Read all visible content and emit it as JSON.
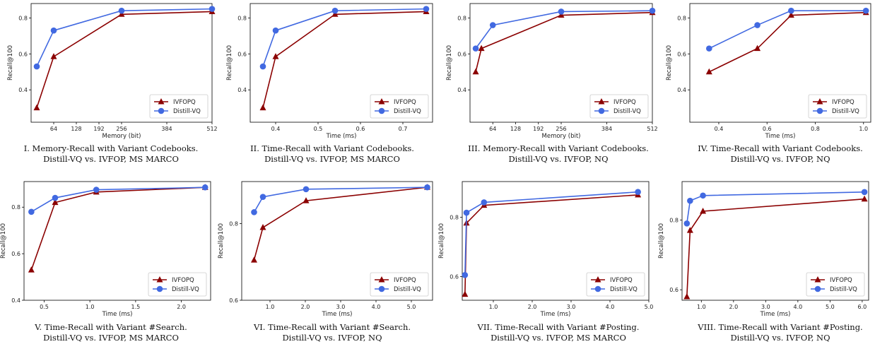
{
  "colors": {
    "IVFOPQ": "#8b0000",
    "Distill-VQ": "#4169e1"
  },
  "chart_data": [
    {
      "type": "line",
      "xlabel": "Memory (bit)",
      "ylabel": "Recall@100",
      "xlim": [
        0,
        512
      ],
      "ylim": [
        0.22,
        0.88
      ],
      "xticks": [
        64,
        128,
        192,
        256,
        384,
        512
      ],
      "xtick_labels": [
        "64",
        "128",
        "192",
        "256",
        "384",
        "512"
      ],
      "yticks": [
        0.4,
        0.6,
        0.8
      ],
      "ytick_labels": [
        "0.4",
        "0.6",
        "0.8"
      ],
      "legend": "lower-right",
      "series": [
        {
          "name": "IVFOPQ",
          "marker": "triangle",
          "x": [
            16,
            64,
            256,
            512
          ],
          "y": [
            0.3,
            0.585,
            0.82,
            0.835
          ]
        },
        {
          "name": "Distill-VQ",
          "marker": "circle",
          "x": [
            16,
            64,
            256,
            512
          ],
          "y": [
            0.53,
            0.73,
            0.84,
            0.85
          ]
        }
      ],
      "caption": [
        "I. Memory-Recall with Variant Codebooks.",
        "Distill-VQ vs. IVFOP, MS MARCO"
      ]
    },
    {
      "type": "line",
      "xlabel": "Time (ms)",
      "ylabel": "Recall@100",
      "xlim": [
        0.34,
        0.77
      ],
      "ylim": [
        0.22,
        0.88
      ],
      "xticks": [
        0.4,
        0.5,
        0.6,
        0.7
      ],
      "xtick_labels": [
        "0.4",
        "0.5",
        "0.6",
        "0.7"
      ],
      "yticks": [
        0.4,
        0.6,
        0.8
      ],
      "ytick_labels": [
        "0.4",
        "0.6",
        "0.8"
      ],
      "legend": "lower-right",
      "series": [
        {
          "name": "IVFOPQ",
          "marker": "triangle",
          "x": [
            0.37,
            0.4,
            0.54,
            0.755
          ],
          "y": [
            0.3,
            0.585,
            0.82,
            0.835
          ]
        },
        {
          "name": "Distill-VQ",
          "marker": "circle",
          "x": [
            0.37,
            0.4,
            0.54,
            0.755
          ],
          "y": [
            0.53,
            0.73,
            0.84,
            0.85
          ]
        }
      ],
      "caption": [
        "II. Time-Recall with Variant Codebooks.",
        "Distill-VQ vs. IVFOP, MS MARCO"
      ]
    },
    {
      "type": "line",
      "xlabel": "Memory (bit)",
      "ylabel": "Recall@100",
      "xlim": [
        0,
        512
      ],
      "ylim": [
        0.22,
        0.88
      ],
      "xticks": [
        64,
        128,
        192,
        256,
        384,
        512
      ],
      "xtick_labels": [
        "64",
        "128",
        "192",
        "256",
        "384",
        "512"
      ],
      "yticks": [
        0.4,
        0.6,
        0.8
      ],
      "ytick_labels": [
        "0.4",
        "0.6",
        "0.8"
      ],
      "legend": "lower-right",
      "series": [
        {
          "name": "IVFOPQ",
          "marker": "triangle",
          "x": [
            16,
            32,
            256,
            512
          ],
          "y": [
            0.5,
            0.63,
            0.815,
            0.83
          ]
        },
        {
          "name": "Distill-VQ",
          "marker": "circle",
          "x": [
            16,
            64,
            256,
            512
          ],
          "y": [
            0.63,
            0.76,
            0.835,
            0.84
          ]
        }
      ],
      "caption": [
        "III. Memory-Recall with Variant Codebooks.",
        "Distill-VQ vs. IVFOP, NQ"
      ]
    },
    {
      "type": "line",
      "xlabel": "Time (ms)",
      "ylabel": "Recall@100",
      "xlim": [
        0.28,
        1.03
      ],
      "ylim": [
        0.22,
        0.88
      ],
      "xticks": [
        0.4,
        0.6,
        0.8,
        1.0
      ],
      "xtick_labels": [
        "0.4",
        "0.6",
        "0.8",
        "1.0"
      ],
      "yticks": [
        0.4,
        0.6,
        0.8
      ],
      "ytick_labels": [
        "0.4",
        "0.6",
        "0.8"
      ],
      "legend": "lower-right",
      "series": [
        {
          "name": "IVFOPQ",
          "marker": "triangle",
          "x": [
            0.36,
            0.56,
            0.7,
            1.01
          ],
          "y": [
            0.5,
            0.63,
            0.815,
            0.83
          ]
        },
        {
          "name": "Distill-VQ",
          "marker": "circle",
          "x": [
            0.36,
            0.56,
            0.7,
            1.01
          ],
          "y": [
            0.63,
            0.76,
            0.84,
            0.84
          ]
        }
      ],
      "caption": [
        "IV. Time-Recall with Variant Codebooks.",
        "Distill-VQ vs. IVFOP, NQ"
      ]
    },
    {
      "type": "line",
      "xlabel": "Time (ms)",
      "ylabel": "Recall@100",
      "xlim": [
        0.28,
        2.32
      ],
      "ylim": [
        0.4,
        0.91
      ],
      "xticks": [
        0.5,
        1.0,
        1.5,
        2.0
      ],
      "xtick_labels": [
        "0.5",
        "1.0",
        "1.5",
        "2.0"
      ],
      "yticks": [
        0.4,
        0.6,
        0.8
      ],
      "ytick_labels": [
        "0.4",
        "0.6",
        "0.8"
      ],
      "legend": "lower-right",
      "series": [
        {
          "name": "IVFOPQ",
          "marker": "triangle",
          "x": [
            0.36,
            0.62,
            1.07,
            2.26
          ],
          "y": [
            0.53,
            0.82,
            0.865,
            0.885
          ]
        },
        {
          "name": "Distill-VQ",
          "marker": "circle",
          "x": [
            0.36,
            0.62,
            1.07,
            2.26
          ],
          "y": [
            0.78,
            0.84,
            0.875,
            0.885
          ]
        }
      ],
      "caption": [
        "V. Time-Recall with Variant #Search.",
        "Distill-VQ vs. IVFOP, MS MARCO"
      ]
    },
    {
      "type": "line",
      "xlabel": "Time (ms)",
      "ylabel": "Recall@100",
      "xlim": [
        0.2,
        5.6
      ],
      "ylim": [
        0.6,
        0.91
      ],
      "xticks": [
        1.0,
        2.0,
        3.0,
        4.0,
        5.0
      ],
      "xtick_labels": [
        "1.0",
        "2.0",
        "3.0",
        "4.0",
        "5.0"
      ],
      "yticks": [
        0.6,
        0.8
      ],
      "ytick_labels": [
        "0.6",
        "0.8"
      ],
      "legend": "lower-right",
      "series": [
        {
          "name": "IVFOPQ",
          "marker": "triangle",
          "x": [
            0.55,
            0.8,
            2.02,
            5.45
          ],
          "y": [
            0.705,
            0.79,
            0.86,
            0.895
          ]
        },
        {
          "name": "Distill-VQ",
          "marker": "circle",
          "x": [
            0.55,
            0.8,
            2.02,
            5.45
          ],
          "y": [
            0.83,
            0.87,
            0.89,
            0.895
          ]
        }
      ],
      "caption": [
        "VI. Time-Recall with Variant #Search.",
        "Distill-VQ vs. IVFOP, NQ"
      ]
    },
    {
      "type": "line",
      "xlabel": "Time (ms)",
      "ylabel": "Recall@100",
      "xlim": [
        0.2,
        5.0
      ],
      "ylim": [
        0.52,
        0.92
      ],
      "xticks": [
        1.0,
        2.0,
        3.0,
        4.0,
        5.0
      ],
      "xtick_labels": [
        "1.0",
        "2.0",
        "3.0",
        "4.0",
        "5.0"
      ],
      "yticks": [
        0.6,
        0.8
      ],
      "ytick_labels": [
        "0.6",
        "0.8"
      ],
      "legend": "lower-right",
      "series": [
        {
          "name": "IVFOPQ",
          "marker": "triangle",
          "x": [
            0.27,
            0.31,
            0.76,
            4.72
          ],
          "y": [
            0.54,
            0.78,
            0.84,
            0.875
          ]
        },
        {
          "name": "Distill-VQ",
          "marker": "circle",
          "x": [
            0.27,
            0.31,
            0.76,
            4.72
          ],
          "y": [
            0.605,
            0.815,
            0.85,
            0.885
          ]
        }
      ],
      "caption": [
        "VII. Time-Recall with Variant #Posting.",
        "Distill-VQ vs. IVFOP, MS MARCO"
      ]
    },
    {
      "type": "line",
      "xlabel": "Time (ms)",
      "ylabel": "Recall@100",
      "xlim": [
        0.4,
        6.2
      ],
      "ylim": [
        0.57,
        0.91
      ],
      "xticks": [
        1.0,
        2.0,
        3.0,
        4.0,
        5.0,
        6.0
      ],
      "xtick_labels": [
        "1.0",
        "2.0",
        "3.0",
        "4.0",
        "5.0",
        "6.0"
      ],
      "yticks": [
        0.6,
        0.8
      ],
      "ytick_labels": [
        "0.6",
        "0.8"
      ],
      "legend": "lower-right",
      "series": [
        {
          "name": "IVFOPQ",
          "marker": "triangle",
          "x": [
            0.55,
            0.65,
            1.05,
            6.07
          ],
          "y": [
            0.58,
            0.77,
            0.825,
            0.86
          ]
        },
        {
          "name": "Distill-VQ",
          "marker": "circle",
          "x": [
            0.55,
            0.65,
            1.05,
            6.07
          ],
          "y": [
            0.79,
            0.855,
            0.87,
            0.88
          ]
        }
      ],
      "caption": [
        "VIII. Time-Recall with Variant #Posting.",
        "Distill-VQ vs. IVFOP, NQ"
      ]
    }
  ]
}
